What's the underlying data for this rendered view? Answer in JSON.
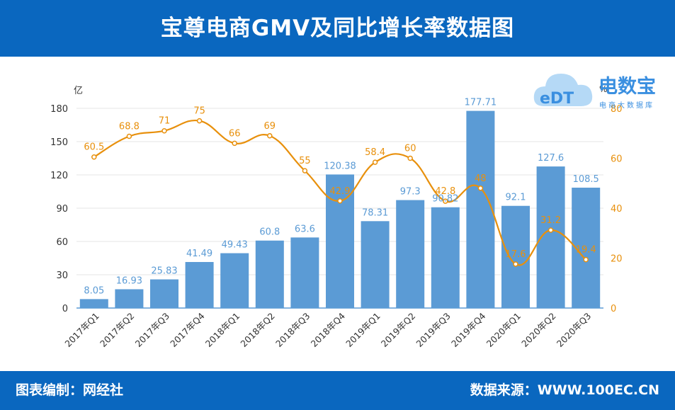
{
  "header": {
    "title": "宝尊电商GMV及同比增长率数据图"
  },
  "footer": {
    "left": "图表编制：网经社",
    "right": "数据来源：WWW.100EC.CN"
  },
  "logo": {
    "mark": "eDT",
    "name": "电数宝",
    "subtitle": "电商大数据库"
  },
  "colors": {
    "header_bg": "#0a67bf",
    "bar": "#5b9bd5",
    "line": "#e8900c",
    "bar_label": "#5b9bd5",
    "line_label": "#e8900c"
  },
  "chart_data": {
    "type": "bar",
    "categories": [
      "2017年Q1",
      "2017年Q2",
      "2017年Q3",
      "2017年Q4",
      "2018年Q1",
      "2018年Q2",
      "2018年Q3",
      "2018年Q4",
      "2019年Q1",
      "2019年Q2",
      "2019年Q3",
      "2019年Q4",
      "2020年Q1",
      "2020年Q2",
      "2020年Q3"
    ],
    "series": [
      {
        "type": "bar",
        "axis": "left",
        "values": [
          8.05,
          16.93,
          25.83,
          41.49,
          49.43,
          60.8,
          63.6,
          120.38,
          78.31,
          97.3,
          90.82,
          177.71,
          92.1,
          127.6,
          108.5
        ]
      },
      {
        "type": "line",
        "axis": "right",
        "values": [
          60.5,
          68.8,
          71,
          75,
          66,
          69,
          55,
          42.9,
          58.4,
          60,
          42.8,
          48,
          17.6,
          31.2,
          19.4
        ]
      }
    ],
    "ylabel": "亿",
    "ylabel_right": "%",
    "ylim": [
      0,
      180
    ],
    "yticks": [
      0,
      30,
      60,
      90,
      120,
      150,
      180
    ],
    "ylim_right": [
      0,
      80
    ],
    "yticks_right": [
      0,
      20,
      40,
      60,
      80
    ],
    "grid": true,
    "legend": "none"
  }
}
